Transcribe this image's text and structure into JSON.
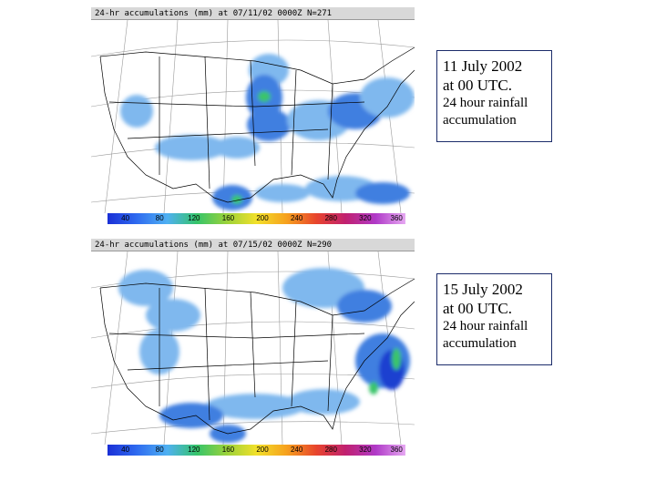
{
  "panels": [
    {
      "header": "24-hr accumulations (mm) at 07/11/02 0000Z N=271",
      "caption": {
        "date_line1": "11 July 2002",
        "date_line2": "at 00 UTC.",
        "desc_line1": "24 hour rainfall",
        "desc_line2": "accumulation"
      },
      "colorbar_labels": [
        "40",
        "80",
        "120",
        "160",
        "200",
        "240",
        "280",
        "320",
        "360"
      ]
    },
    {
      "header": "24-hr accumulations (mm) at 07/15/02 0000Z N=290",
      "caption": {
        "date_line1": "15 July 2002",
        "date_line2": "at 00 UTC.",
        "desc_line1": "24 hour rainfall",
        "desc_line2": "accumulation"
      },
      "colorbar_labels": [
        "40",
        "80",
        "120",
        "160",
        "200",
        "240",
        "280",
        "320",
        "360"
      ]
    }
  ],
  "colors": {
    "rain_light": "#7fb8ee",
    "rain_mid": "#3f7fe0",
    "rain_heavy": "#1a3fd0",
    "rain_peak": "#3ac46a",
    "border": "#1c2c6a"
  }
}
